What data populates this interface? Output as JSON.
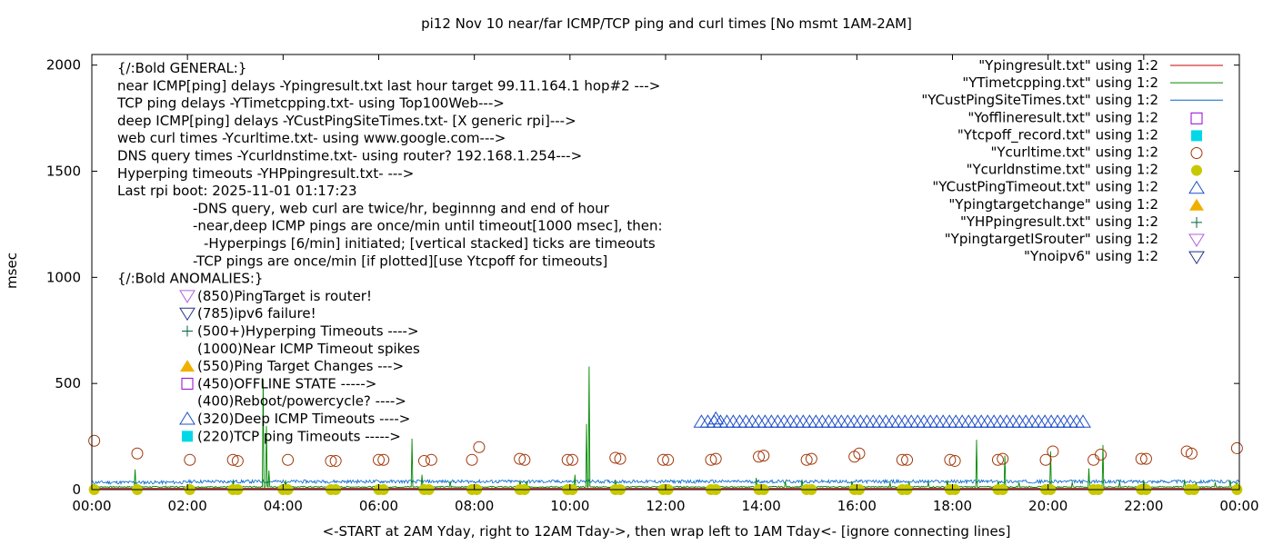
{
  "chart_data": {
    "type": "line",
    "title": "pi12 Nov 10  near/far ICMP/TCP ping and curl times [No msmt 1AM-2AM]",
    "xlabel": "<-START at 2AM Yday, right to 12AM Tday->, then wrap left to 1AM Tday<- [ignore connecting lines]",
    "ylabel": "msec",
    "xlim": [
      0,
      24
    ],
    "ylim": [
      0,
      2050
    ],
    "grid": false,
    "legend_position": "top-right",
    "x_ticks": [
      {
        "x": 0,
        "label": "00:00"
      },
      {
        "x": 2,
        "label": "02:00"
      },
      {
        "x": 4,
        "label": "04:00"
      },
      {
        "x": 6,
        "label": "06:00"
      },
      {
        "x": 8,
        "label": "08:00"
      },
      {
        "x": 10,
        "label": "10:00"
      },
      {
        "x": 12,
        "label": "12:00"
      },
      {
        "x": 14,
        "label": "14:00"
      },
      {
        "x": 16,
        "label": "16:00"
      },
      {
        "x": 18,
        "label": "18:00"
      },
      {
        "x": 20,
        "label": "20:00"
      },
      {
        "x": 22,
        "label": "22:00"
      },
      {
        "x": 24,
        "label": "00:00"
      }
    ],
    "y_ticks": [
      {
        "y": 0,
        "label": "0"
      },
      {
        "y": 500,
        "label": "500"
      },
      {
        "y": 1000,
        "label": "1000"
      },
      {
        "y": 1500,
        "label": "1500"
      },
      {
        "y": 2000,
        "label": "2000"
      }
    ],
    "annotations": [
      "{/:Bold GENERAL:}",
      "near ICMP[ping] delays -Ypingresult.txt last hour target 99.11.164.1 hop#2 --->",
      "TCP ping delays -YTimetcpping.txt- using Top100Web--->",
      "deep ICMP[ping] delays -YCustPingSiteTimes.txt- [X generic rpi]--->",
      "web curl times -Ycurltime.txt- using www.google.com--->",
      "DNS query times -Ycurldnstime.txt- using router? 192.168.1.254--->",
      "Hyperping timeouts -YHPpingresult.txt- --->",
      "Last rpi boot: 2025-11-01 01:17:23",
      "-DNS query, web curl are twice/hr, beginnng and end of hour",
      "-near,deep ICMP pings are once/min until timeout[1000 msec], then:",
      "-Hyperpings [6/min] initiated; [vertical stacked] ticks are timeouts",
      "-TCP pings are once/min [if plotted][use Ytcpoff for timeouts]",
      "{/:Bold ANOMALIES:}",
      "(850)PingTarget is router!",
      "(785)ipv6 failure!",
      "(500+)Hyperping Timeouts ---->",
      "(1000)Near ICMP Timeout spikes",
      "(550)Ping Target Changes --->",
      "(450)OFFLINE STATE ----->",
      "(400)Reboot/powercycle? ---->",
      "(320)Deep ICMP Timeouts ---->",
      "(220)TCP ping Timeouts ----->"
    ],
    "series": [
      {
        "name": "\"Ypingresult.txt\" using 1:2",
        "color": "#cc0000",
        "style": "line",
        "points": [
          [
            0,
            5
          ],
          [
            24,
            5
          ]
        ]
      },
      {
        "name": "\"YTimetcpping.txt\" using 1:2",
        "color": "#008800",
        "style": "line",
        "baseline": 10,
        "spikes": [
          [
            0.9,
            95
          ],
          [
            2.95,
            40
          ],
          [
            3.58,
            520
          ],
          [
            3.65,
            300
          ],
          [
            3.7,
            90
          ],
          [
            4.05,
            45
          ],
          [
            6.7,
            240
          ],
          [
            6.9,
            70
          ],
          [
            7.5,
            40
          ],
          [
            8.95,
            45
          ],
          [
            9.1,
            40
          ],
          [
            10.4,
            580
          ],
          [
            10.35,
            310
          ],
          [
            10.1,
            70
          ],
          [
            10.95,
            45
          ],
          [
            13.9,
            55
          ],
          [
            14.5,
            40
          ],
          [
            14.85,
            45
          ],
          [
            15.9,
            40
          ],
          [
            16.7,
            35
          ],
          [
            17.1,
            35
          ],
          [
            17.5,
            35
          ],
          [
            17.9,
            45
          ],
          [
            18.5,
            235
          ],
          [
            18.95,
            40
          ],
          [
            19.1,
            160
          ],
          [
            19.4,
            35
          ],
          [
            20.05,
            180
          ],
          [
            20.5,
            35
          ],
          [
            20.85,
            100
          ],
          [
            21.15,
            210
          ],
          [
            21.5,
            40
          ],
          [
            22.0,
            45
          ],
          [
            22.85,
            45
          ],
          [
            23.1,
            35
          ],
          [
            23.5,
            35
          ],
          [
            23.8,
            45
          ],
          [
            23.95,
            35
          ]
        ]
      },
      {
        "name": "\"YCustPingSiteTimes.txt\" using 1:2",
        "color": "#0066cc",
        "style": "line",
        "baseline": 30
      },
      {
        "name": "\"Yofflineresult.txt\" using 1:2",
        "color": "#9400d3",
        "style": "open-square",
        "points": []
      },
      {
        "name": "\"Ytcpoff_record.txt\" using 1:2",
        "color": "#00d8e8",
        "style": "filled-square",
        "points": []
      },
      {
        "name": "\"Ycurltime.txt\" using 1:2",
        "color": "#a0380a",
        "style": "open-circle",
        "points": [
          [
            0.05,
            230
          ],
          [
            0.95,
            170
          ],
          [
            2.05,
            140
          ],
          [
            2.95,
            140
          ],
          [
            3.05,
            135
          ],
          [
            4.1,
            140
          ],
          [
            5.0,
            135
          ],
          [
            5.1,
            135
          ],
          [
            6.0,
            140
          ],
          [
            6.1,
            140
          ],
          [
            6.95,
            135
          ],
          [
            7.1,
            140
          ],
          [
            7.95,
            140
          ],
          [
            8.1,
            200
          ],
          [
            8.95,
            145
          ],
          [
            9.05,
            140
          ],
          [
            9.95,
            140
          ],
          [
            10.05,
            140
          ],
          [
            10.95,
            150
          ],
          [
            11.05,
            145
          ],
          [
            11.95,
            140
          ],
          [
            12.05,
            140
          ],
          [
            12.95,
            140
          ],
          [
            13.05,
            145
          ],
          [
            13.95,
            155
          ],
          [
            14.05,
            160
          ],
          [
            14.95,
            140
          ],
          [
            15.05,
            145
          ],
          [
            15.95,
            155
          ],
          [
            16.05,
            170
          ],
          [
            16.95,
            140
          ],
          [
            17.05,
            140
          ],
          [
            17.95,
            140
          ],
          [
            18.05,
            135
          ],
          [
            18.95,
            140
          ],
          [
            19.05,
            145
          ],
          [
            19.95,
            140
          ],
          [
            20.1,
            180
          ],
          [
            20.95,
            140
          ],
          [
            21.1,
            165
          ],
          [
            21.95,
            145
          ],
          [
            22.05,
            145
          ],
          [
            22.9,
            180
          ],
          [
            23.0,
            170
          ],
          [
            23.95,
            195
          ]
        ]
      },
      {
        "name": "\"Ycurldnstime.txt\" using 1:2",
        "color": "#c8c800",
        "style": "filled-circle",
        "points": [
          [
            0.05,
            0
          ],
          [
            0.95,
            0
          ],
          [
            2.05,
            0
          ],
          [
            2.95,
            0
          ],
          [
            3.05,
            0
          ],
          [
            4.0,
            0
          ],
          [
            4.1,
            0
          ],
          [
            5.0,
            0
          ],
          [
            5.1,
            0
          ],
          [
            6.0,
            0
          ],
          [
            6.1,
            0
          ],
          [
            6.95,
            0
          ],
          [
            7.05,
            0
          ],
          [
            7.95,
            0
          ],
          [
            8.05,
            0
          ],
          [
            8.95,
            0
          ],
          [
            9.05,
            0
          ],
          [
            9.95,
            0
          ],
          [
            10.05,
            0
          ],
          [
            10.95,
            0
          ],
          [
            11.05,
            0
          ],
          [
            11.95,
            0
          ],
          [
            12.05,
            0
          ],
          [
            12.95,
            0
          ],
          [
            13.05,
            0
          ],
          [
            13.95,
            0
          ],
          [
            14.05,
            0
          ],
          [
            14.95,
            0
          ],
          [
            15.05,
            0
          ],
          [
            15.95,
            0
          ],
          [
            16.05,
            0
          ],
          [
            16.95,
            0
          ],
          [
            17.05,
            0
          ],
          [
            17.95,
            0
          ],
          [
            18.05,
            0
          ],
          [
            18.95,
            0
          ],
          [
            19.05,
            0
          ],
          [
            19.95,
            0
          ],
          [
            20.05,
            0
          ],
          [
            20.95,
            0
          ],
          [
            21.05,
            0
          ],
          [
            21.95,
            0
          ],
          [
            22.05,
            0
          ],
          [
            22.95,
            0
          ],
          [
            23.05,
            0
          ],
          [
            23.95,
            0
          ]
        ]
      },
      {
        "name": "\"YCustPingTimeout.txt\" using 1:2",
        "color": "#1f4fc8",
        "style": "open-triangle-up",
        "range": [
          12.75,
          20.85
        ],
        "step": 0.133,
        "value": 320,
        "extra": [
          [
            13.05,
            335
          ]
        ]
      },
      {
        "name": "\"Ypingtargetchange\" using 1:2",
        "color": "#f0b000",
        "style": "filled-triangle-up",
        "points": []
      },
      {
        "name": "\"YHPpingresult.txt\" using 1:2",
        "color": "#006040",
        "style": "plus",
        "points": []
      },
      {
        "name": "\"YpingtargetISrouter\" using 1:2",
        "color": "#b060e0",
        "style": "open-triangle-down",
        "points": []
      },
      {
        "name": "\"Ynoipv6\" using 1:2",
        "color": "#203080",
        "style": "open-triangle-down",
        "points": []
      }
    ]
  }
}
